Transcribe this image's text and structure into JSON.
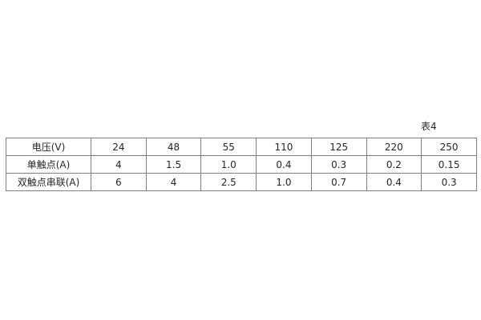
{
  "caption": "表4",
  "colors": {
    "border": "#7f7f7f",
    "text": "#262626",
    "background": "#ffffff"
  },
  "chart_data": {
    "type": "table",
    "title": "表4",
    "rows": [
      {
        "cells": [
          "电压(V)",
          "24",
          "48",
          "55",
          "110",
          "125",
          "220",
          "250"
        ]
      },
      {
        "cells": [
          "单触点(A)",
          "4",
          "1.5",
          "1.0",
          "0.4",
          "0.3",
          "0.2",
          "0.15"
        ]
      },
      {
        "cells": [
          "双触点串联(A)",
          "6",
          "4",
          "2.5",
          "1.0",
          "0.7",
          "0.4",
          "0.3"
        ]
      }
    ]
  }
}
